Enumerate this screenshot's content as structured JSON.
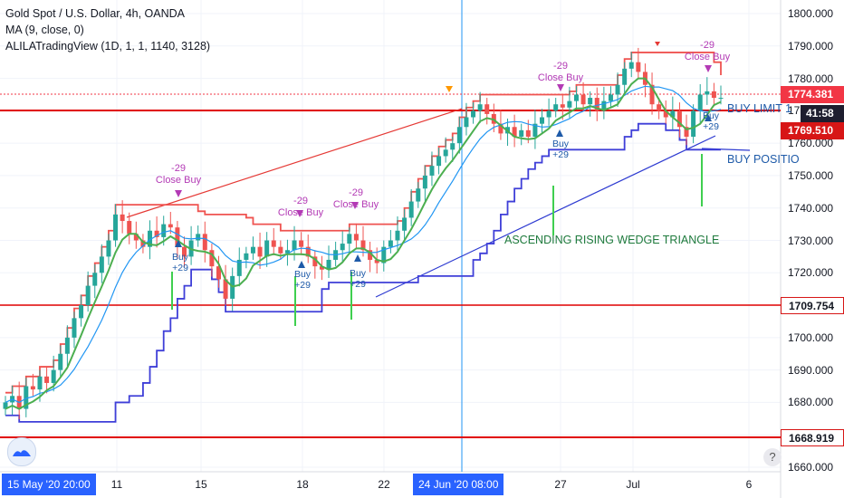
{
  "legend": {
    "symbol": "Gold Spot / U.S. Dollar, 4h, OANDA",
    "ma": "MA (9, close, 0)",
    "indicator": "ALILATradingView (1D, 1, 1, 1140, 3128)"
  },
  "price_tags": {
    "current": "1774.381",
    "countdown": "41:58",
    "level_mid": "1769.510",
    "level_low": "1709.754",
    "level_bottom": "1668.919"
  },
  "price_tag_colors": {
    "current": "#f23645",
    "countdown": "#1e1e2f",
    "level_mid": "#d71616",
    "level_low": "#d71616",
    "level_bottom": "#d71616"
  },
  "annotations": {
    "close_buy_label": "Close Buy",
    "minus29": "-29",
    "buy_label": "Buy",
    "plus29": "+29",
    "wedge_text": "ASCENDING RISING WEDGE TRIANGLE",
    "buy_limit_text": "BUY LIMIT 1",
    "buy_position_text": "BUY POSITIO"
  },
  "time_axis": {
    "highlight_left": "15 May '20  20:00",
    "highlight_mid": "24 Jun '20  08:00",
    "labels": [
      "11",
      "15",
      "18",
      "22",
      "27",
      "Jul",
      "6"
    ]
  },
  "chart_data": {
    "type": "candlestick",
    "title": "Gold Spot / U.S. Dollar, 4h, OANDA",
    "y_axis": {
      "ticks": [
        1660,
        1670,
        1680,
        1690,
        1700,
        1710,
        1720,
        1730,
        1740,
        1750,
        1760,
        1770,
        1780,
        1790,
        1800
      ],
      "tick_labels": [
        "1660.000",
        "1670.000",
        "1680.000",
        "1690.000",
        "1700.000",
        "1710.000",
        "1720.000",
        "1730.000",
        "1740.000",
        "1750.000",
        "1760.000",
        "1770.000",
        "1780.000",
        "1790.000",
        "1800.000"
      ],
      "ylim": [
        1657,
        1803
      ]
    },
    "horizontal_levels": [
      1769.51,
      1709.754,
      1668.919
    ],
    "current_price": 1774.381,
    "colors": {
      "up": "#26a69a",
      "down": "#ef5350",
      "ma": "#2196f3",
      "upper": "#ef5350",
      "lower": "#3f3fd8",
      "green_line": "#4caf50"
    },
    "candles_close": [
      1680,
      1682,
      1678,
      1685,
      1684,
      1688,
      1686,
      1690,
      1695,
      1700,
      1706,
      1710,
      1716,
      1720,
      1725,
      1730,
      1738,
      1736,
      1732,
      1730,
      1728,
      1733,
      1731,
      1735,
      1734,
      1728,
      1725,
      1730,
      1732,
      1727,
      1722,
      1718,
      1712,
      1719,
      1724,
      1726,
      1728,
      1725,
      1730,
      1728,
      1726,
      1727,
      1730,
      1728,
      1725,
      1722,
      1721,
      1724,
      1727,
      1729,
      1732,
      1730,
      1727,
      1724,
      1723,
      1728,
      1730,
      1733,
      1737,
      1742,
      1746,
      1750,
      1753,
      1756,
      1758,
      1760,
      1765,
      1768,
      1770,
      1772,
      1769,
      1766,
      1763,
      1765,
      1762,
      1764,
      1762,
      1766,
      1768,
      1770,
      1772,
      1771,
      1773,
      1775,
      1772,
      1774,
      1770,
      1773,
      1775,
      1778,
      1783,
      1785,
      1782,
      1778,
      1772,
      1770,
      1768,
      1770,
      1765,
      1762,
      1770,
      1775,
      1776,
      1774,
      1774
    ]
  }
}
